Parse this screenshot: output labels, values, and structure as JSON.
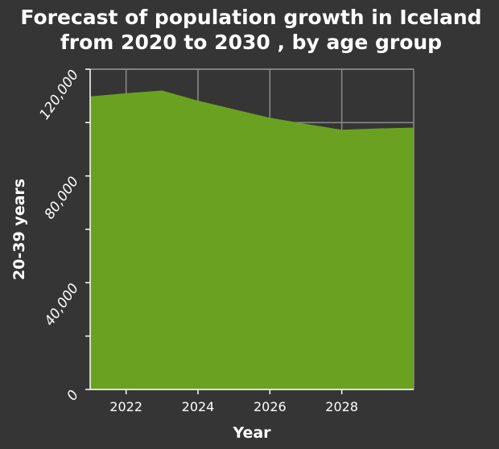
{
  "chart_data": {
    "type": "area",
    "title_lines": [
      "Forecast of population growth in Iceland",
      "from 2020 to 2030 , by age group"
    ],
    "xlabel": "Year",
    "ylabel": "20-39 years",
    "x": [
      2021,
      2022,
      2023,
      2024,
      2025,
      2026,
      2027,
      2028,
      2029,
      2030
    ],
    "series": [
      {
        "name": "20-39 years",
        "values": [
          109800,
          111000,
          112000,
          108200,
          105000,
          101800,
          99500,
          97300,
          97800,
          98100
        ],
        "color": "#6aa121"
      }
    ],
    "xlim": [
      2021,
      2030
    ],
    "ylim": [
      0,
      120000
    ],
    "x_ticks": [
      2022,
      2024,
      2026,
      2028
    ],
    "x_tick_labels": [
      "2022",
      "2024",
      "2026",
      "2028"
    ],
    "y_ticks": [
      0,
      40000,
      80000,
      120000
    ],
    "y_tick_labels": [
      "0",
      "40,000",
      "80,000",
      "120,000"
    ],
    "y_minor_ticks": [
      20000,
      60000,
      100000
    ],
    "grid": true,
    "colors": {
      "background": "#353535",
      "grid": "#8c8c8c",
      "axis": "#ffffff",
      "text": "#ffffff"
    }
  }
}
